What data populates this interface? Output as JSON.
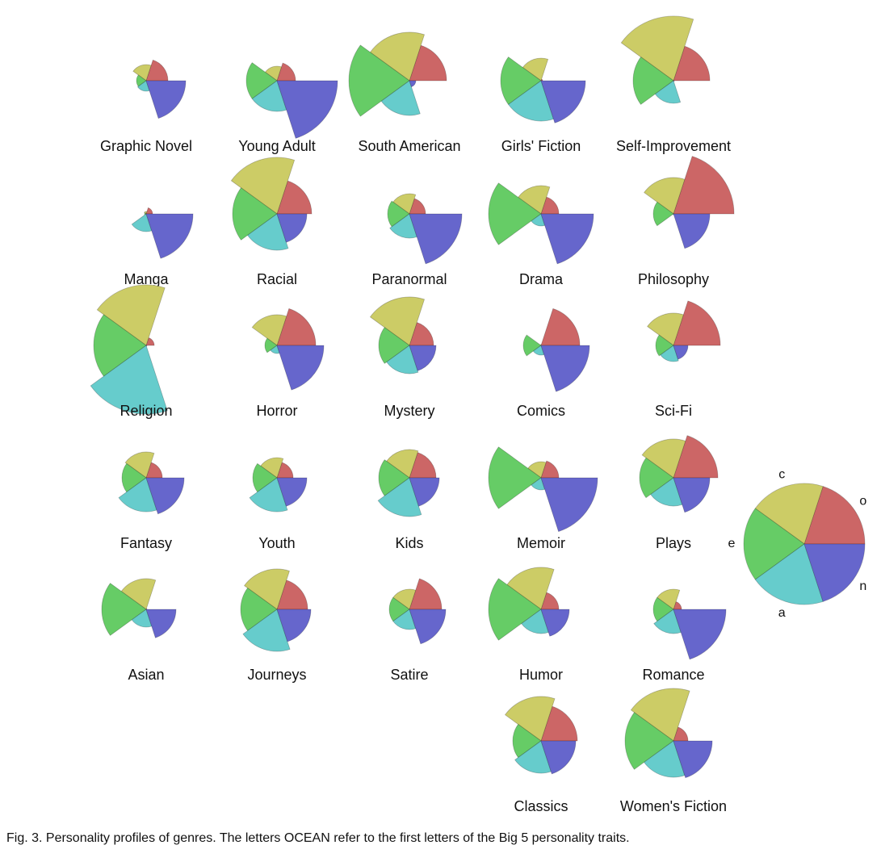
{
  "chart_data": {
    "type": "polar-area",
    "title": "",
    "traits": [
      "o",
      "c",
      "e",
      "a",
      "n"
    ],
    "trait_colors": [
      "#CC6666",
      "#CCCC66",
      "#66CC66",
      "#66CCCC",
      "#6666CC"
    ],
    "value_range": [
      0,
      75
    ],
    "charts": [
      {
        "name": "Graphic Novel",
        "values": [
          27,
          20,
          12,
          13,
          49
        ]
      },
      {
        "name": "Young Adult",
        "values": [
          23,
          18,
          38,
          38,
          75
        ]
      },
      {
        "name": "South American",
        "values": [
          46,
          60,
          75,
          43,
          8
        ]
      },
      {
        "name": "Girls' Fiction",
        "values": [
          2,
          28,
          50,
          50,
          55
        ]
      },
      {
        "name": "Self-Improvement",
        "values": [
          45,
          80,
          50,
          28,
          1
        ]
      },
      {
        "name": "Manga",
        "values": [
          8,
          3,
          2,
          22,
          58
        ]
      },
      {
        "name": "Racial",
        "values": [
          43,
          70,
          55,
          45,
          37
        ]
      },
      {
        "name": "Paranormal",
        "values": [
          20,
          25,
          27,
          30,
          65
        ]
      },
      {
        "name": "Drama",
        "values": [
          22,
          35,
          65,
          15,
          65
        ]
      },
      {
        "name": "Philosophy",
        "values": [
          75,
          45,
          25,
          1,
          45
        ]
      },
      {
        "name": "Religion",
        "values": [
          10,
          75,
          65,
          85,
          1
        ]
      },
      {
        "name": "Horror",
        "values": [
          48,
          38,
          15,
          10,
          58
        ]
      },
      {
        "name": "Mystery",
        "values": [
          30,
          60,
          38,
          35,
          33
        ]
      },
      {
        "name": "Comics",
        "values": [
          48,
          1,
          22,
          12,
          60
        ]
      },
      {
        "name": "Sci-Fi",
        "values": [
          58,
          40,
          22,
          20,
          18
        ]
      },
      {
        "name": "Fantasy",
        "values": [
          20,
          32,
          30,
          42,
          47
        ]
      },
      {
        "name": "Youth",
        "values": [
          20,
          25,
          30,
          42,
          37
        ]
      },
      {
        "name": "Kids",
        "values": [
          33,
          35,
          38,
          48,
          37
        ]
      },
      {
        "name": "Memoir",
        "values": [
          22,
          20,
          65,
          15,
          70
        ]
      },
      {
        "name": "Plays",
        "values": [
          55,
          48,
          42,
          35,
          45
        ]
      },
      {
        "name": "Asian",
        "values": [
          1,
          38,
          55,
          22,
          37
        ]
      },
      {
        "name": "Journeys",
        "values": [
          38,
          50,
          45,
          52,
          42
        ]
      },
      {
        "name": "Satire",
        "values": [
          40,
          25,
          25,
          25,
          45
        ]
      },
      {
        "name": "Humor",
        "values": [
          22,
          52,
          65,
          30,
          35
        ]
      },
      {
        "name": "Romance",
        "values": [
          10,
          25,
          25,
          30,
          65
        ]
      },
      {
        "name": "Classics",
        "values": [
          45,
          55,
          35,
          40,
          43
        ]
      },
      {
        "name": "Women's Fiction",
        "values": [
          18,
          65,
          60,
          45,
          48
        ]
      }
    ],
    "legend": {
      "values": [
        75,
        75,
        75,
        75,
        75
      ],
      "labels": [
        "o",
        "c",
        "e",
        "a",
        "n"
      ]
    },
    "caption": "Fig. 3. Personality profiles of genres. The letters OCEAN refer to the first letters of the Big 5 personality traits."
  }
}
